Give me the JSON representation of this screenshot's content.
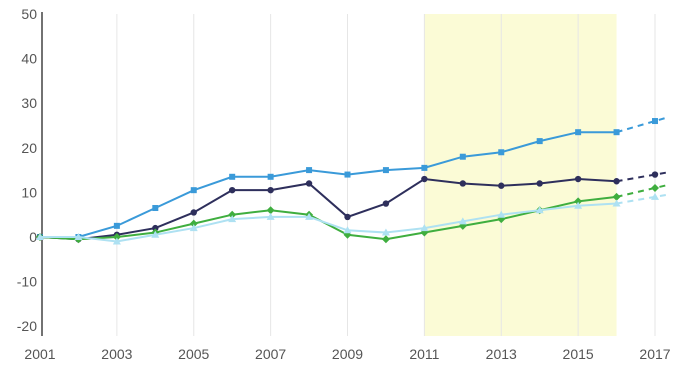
{
  "chart_data": {
    "type": "line",
    "title": "",
    "xlabel": "",
    "ylabel": "",
    "xlim": [
      2001,
      2017.5
    ],
    "ylim": [
      -22,
      50
    ],
    "x_ticks": [
      2001,
      2003,
      2005,
      2007,
      2009,
      2011,
      2013,
      2015,
      2017
    ],
    "x_tick_labels": [
      "2001",
      "2003",
      "2005",
      "2007",
      "2009",
      "2011",
      "2013",
      "2015",
      "2017"
    ],
    "y_ticks": [
      50,
      40,
      30,
      20,
      10,
      0,
      -10,
      -20
    ],
    "y_tick_labels": [
      "50",
      "40",
      "30",
      "20",
      "10",
      "0",
      "-10",
      "-20"
    ],
    "grid": {
      "vertical": true,
      "horizontal": false
    },
    "highlight_region": {
      "x_start": 2011,
      "x_end": 2016,
      "color": "#fbfbd6"
    },
    "legend": "none",
    "dashed_from_x": 2016,
    "series": [
      {
        "color": "#3a9ad9",
        "marker": "square",
        "x": [
          2001,
          2002,
          2003,
          2004,
          2005,
          2006,
          2007,
          2008,
          2009,
          2010,
          2011,
          2012,
          2013,
          2014,
          2015,
          2016,
          2017
        ],
        "values": [
          0,
          0,
          2.5,
          6.5,
          10.5,
          13.5,
          13.5,
          15,
          14,
          15,
          15.5,
          18,
          19,
          21.5,
          23.5,
          23.5,
          26
        ]
      },
      {
        "color": "#2e2f5c",
        "marker": "circle",
        "x": [
          2001,
          2002,
          2003,
          2004,
          2005,
          2006,
          2007,
          2008,
          2009,
          2010,
          2011,
          2012,
          2013,
          2014,
          2015,
          2016,
          2017
        ],
        "values": [
          0,
          -0.5,
          0.5,
          2,
          5.5,
          10.5,
          10.5,
          12,
          4.5,
          7.5,
          13,
          12,
          11.5,
          12,
          13,
          12.5,
          14
        ]
      },
      {
        "color": "#3fae3f",
        "marker": "diamond",
        "x": [
          2001,
          2002,
          2003,
          2004,
          2005,
          2006,
          2007,
          2008,
          2009,
          2010,
          2011,
          2012,
          2013,
          2014,
          2015,
          2016,
          2017
        ],
        "values": [
          0,
          -0.5,
          0,
          1,
          3,
          5,
          6,
          5,
          0.5,
          -0.5,
          1,
          2.5,
          4,
          6,
          8,
          9,
          11
        ]
      },
      {
        "color": "#aee1f2",
        "marker": "triangle",
        "x": [
          2001,
          2002,
          2003,
          2004,
          2005,
          2006,
          2007,
          2008,
          2009,
          2010,
          2011,
          2012,
          2013,
          2014,
          2015,
          2016,
          2017
        ],
        "values": [
          0,
          0,
          -1,
          0.5,
          2,
          4,
          4.5,
          4.5,
          1.5,
          1,
          2,
          3.5,
          5,
          6,
          7,
          7.5,
          9
        ]
      }
    ]
  }
}
